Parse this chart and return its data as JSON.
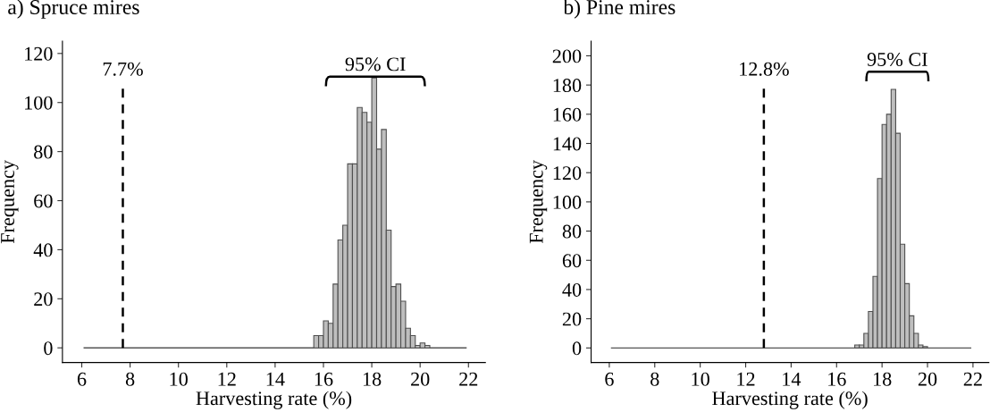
{
  "chart_data": [
    {
      "type": "histogram",
      "title": "a) Spruce mires",
      "xlabel": "Harvesting rate (%)",
      "ylabel": "Frequency",
      "color": "#bebebe",
      "bins": [
        15.6,
        15.8,
        16.0,
        16.2,
        16.4,
        16.6,
        16.8,
        17.0,
        17.2,
        17.4,
        17.6,
        17.8,
        18.0,
        18.2,
        18.4,
        18.6,
        18.8,
        19.0,
        19.2,
        19.4,
        19.6,
        19.8,
        20.0,
        20.2,
        20.4
      ],
      "values": [
        5,
        5,
        11,
        10,
        26,
        44,
        50,
        75,
        75,
        98,
        96,
        92,
        110,
        81,
        89,
        48,
        25,
        26,
        19,
        8,
        5,
        1,
        2,
        1
      ],
      "xlim": [
        5.2,
        22.7
      ],
      "xticks": [
        6,
        8,
        10,
        12,
        14,
        16,
        18,
        20,
        22
      ],
      "ylim": [
        -6,
        125
      ],
      "yticks": [
        0,
        20,
        40,
        60,
        80,
        100,
        120
      ],
      "grid": false,
      "ref_lines": [
        {
          "axis": "x",
          "value": 7.7,
          "label": "7.7%",
          "line_style": "dashed",
          "color": "#000000"
        },
        {
          "axis": "y",
          "value": 0,
          "label": null,
          "line_style": "solid",
          "color": "#555555"
        }
      ],
      "annotations": [
        "95% CI"
      ]
    },
    {
      "type": "histogram",
      "title": "b) Pine mires",
      "xlabel": "Harvesting rate (%)",
      "ylabel": "Frequency",
      "color": "#bebebe",
      "bins": [
        16.8,
        17.0,
        17.2,
        17.4,
        17.6,
        17.8,
        18.0,
        18.2,
        18.4,
        18.6,
        18.8,
        19.0,
        19.2,
        19.4,
        19.6,
        19.8,
        20.0
      ],
      "values": [
        2,
        2,
        10,
        25,
        49,
        116,
        153,
        160,
        177,
        147,
        71,
        44,
        22,
        10,
        2,
        1
      ],
      "xlim": [
        5.2,
        22.7
      ],
      "xticks": [
        6,
        8,
        10,
        12,
        14,
        16,
        18,
        20,
        22
      ],
      "ylim": [
        -10,
        210
      ],
      "yticks": [
        0,
        20,
        40,
        60,
        80,
        100,
        120,
        140,
        160,
        180,
        200
      ],
      "grid": false,
      "ref_lines": [
        {
          "axis": "x",
          "value": 12.8,
          "label": "12.8%",
          "line_style": "dashed",
          "color": "#000000"
        },
        {
          "axis": "y",
          "value": 0,
          "label": null,
          "line_style": "solid",
          "color": "#555555"
        }
      ],
      "annotations": [
        "95% CI"
      ]
    }
  ]
}
